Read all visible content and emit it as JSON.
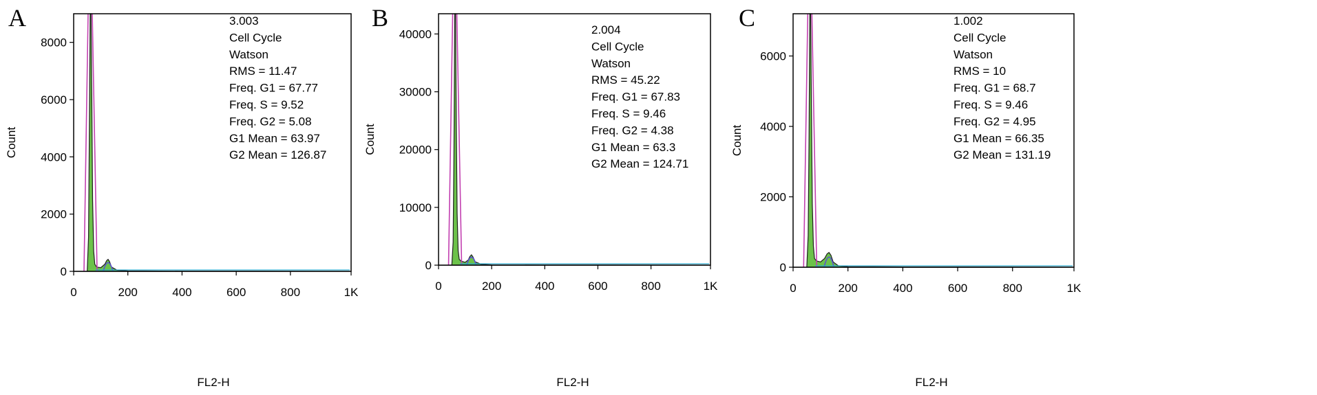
{
  "chart_data": [
    {
      "type": "area",
      "panel_label": "A",
      "xlabel": "FL2-H",
      "ylabel": "Count",
      "xlim": [
        0,
        1024
      ],
      "ylim": [
        0,
        9000
      ],
      "x_ticks": [
        0,
        200,
        400,
        600,
        800,
        1024
      ],
      "x_tick_labels": [
        "0",
        "200",
        "400",
        "600",
        "800",
        "1K"
      ],
      "y_ticks": [
        0,
        2000,
        4000,
        6000,
        8000
      ],
      "y_tick_labels": [
        "0",
        "2000",
        "4000",
        "6000",
        "8000"
      ],
      "stats": [
        "3.003",
        "Cell Cycle",
        "Watson",
        "RMS  = 11.47",
        "Freq. G1  = 67.77",
        "Freq. S  = 9.52",
        "Freq. G2  = 5.08",
        "G1 Mean  = 63.97",
        "G2 Mean  = 126.87"
      ],
      "series": [
        {
          "x": [
            0,
            50,
            55,
            58,
            61,
            64,
            67,
            70,
            74,
            78,
            85,
            100,
            115,
            122,
            127,
            132,
            140,
            160,
            200,
            400,
            800,
            1024
          ],
          "y": [
            0,
            0,
            1200,
            5000,
            9000,
            9000,
            6000,
            2500,
            700,
            250,
            150,
            130,
            250,
            380,
            420,
            350,
            150,
            40,
            15,
            8,
            5,
            0
          ]
        }
      ]
    },
    {
      "type": "area",
      "panel_label": "B",
      "xlabel": "FL2-H",
      "ylabel": "Count",
      "xlim": [
        0,
        1024
      ],
      "ylim": [
        0,
        43500
      ],
      "x_ticks": [
        0,
        200,
        400,
        600,
        800,
        1024
      ],
      "x_tick_labels": [
        "0",
        "200",
        "400",
        "600",
        "800",
        "1K"
      ],
      "y_ticks": [
        0,
        10000,
        20000,
        30000,
        40000
      ],
      "y_tick_labels": [
        "0",
        "10000",
        "20000",
        "30000",
        "40000"
      ],
      "stats": [
        "2.004",
        "Cell Cycle",
        "Watson",
        "RMS  = 45.22",
        "Freq. G1  = 67.83",
        "Freq. S  = 9.46",
        "Freq. G2  = 4.38",
        "G1 Mean  = 63.3",
        "G2 Mean  = 124.71"
      ],
      "series": [
        {
          "x": [
            0,
            50,
            55,
            58,
            61,
            64,
            67,
            70,
            74,
            78,
            85,
            100,
            112,
            118,
            124,
            130,
            138,
            160,
            200,
            400,
            800,
            1024
          ],
          "y": [
            0,
            0,
            4000,
            20000,
            43500,
            43500,
            25000,
            9000,
            2500,
            1000,
            700,
            500,
            900,
            1500,
            1800,
            1400,
            600,
            150,
            50,
            30,
            20,
            0
          ]
        }
      ]
    },
    {
      "type": "area",
      "panel_label": "C",
      "xlabel": "FL2-H",
      "ylabel": "Count",
      "xlim": [
        0,
        1024
      ],
      "ylim": [
        0,
        7200
      ],
      "x_ticks": [
        0,
        200,
        400,
        600,
        800,
        1024
      ],
      "x_tick_labels": [
        "0",
        "200",
        "400",
        "600",
        "800",
        "1K"
      ],
      "y_ticks": [
        0,
        2000,
        4000,
        6000
      ],
      "y_tick_labels": [
        "0",
        "2000",
        "4000",
        "6000"
      ],
      "stats": [
        "1.002",
        "Cell Cycle",
        "Watson",
        "RMS  = 10",
        "Freq. G1  = 68.7",
        "Freq. S  = 9.46",
        "Freq. G2  = 4.95",
        "G1 Mean  = 66.35",
        "G2 Mean  = 131.19"
      ],
      "series": [
        {
          "x": [
            0,
            50,
            55,
            58,
            61,
            64,
            67,
            70,
            74,
            78,
            85,
            100,
            115,
            124,
            131,
            138,
            146,
            165,
            200,
            400,
            800,
            1024
          ],
          "y": [
            0,
            0,
            900,
            3500,
            7200,
            7200,
            4500,
            1800,
            600,
            250,
            180,
            150,
            250,
            380,
            420,
            340,
            150,
            40,
            15,
            8,
            5,
            0
          ]
        }
      ]
    }
  ]
}
